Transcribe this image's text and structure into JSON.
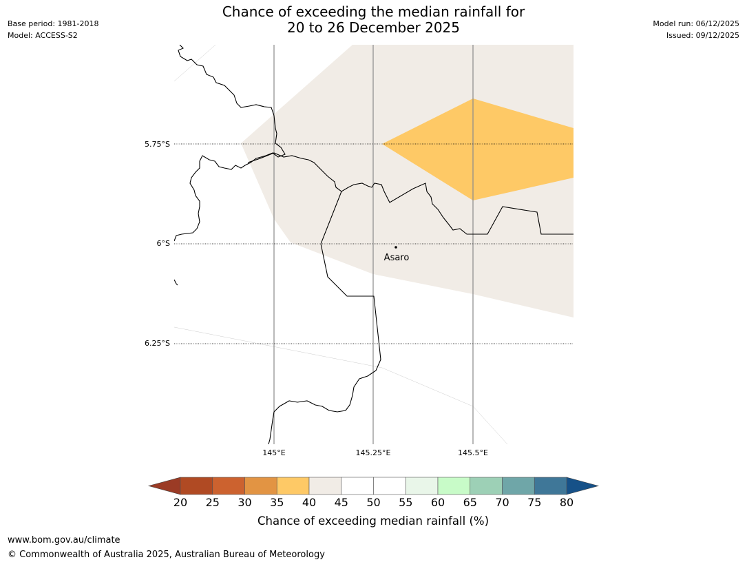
{
  "title": {
    "line1": "Chance of exceeding the median rainfall for",
    "line2": "20 to 26 December 2025"
  },
  "meta_left": {
    "base_period": "Base period: 1981-2018",
    "model": "Model: ACCESS-S2"
  },
  "meta_right": {
    "model_run": "Model run: 06/12/2025",
    "issued": "Issued: 09/12/2025"
  },
  "map": {
    "lat_labels": [
      "5.75°S",
      "6°S",
      "6.25°S"
    ],
    "lon_labels": [
      "145°E",
      "145.25°E",
      "145.5°E"
    ],
    "place": {
      "name": "Asaro"
    },
    "regions": [
      {
        "name": "40-45%",
        "color": "#f1ece6"
      },
      {
        "name": "35-40%",
        "color": "#fec966"
      }
    ]
  },
  "colorbar": {
    "ticks": [
      "20",
      "25",
      "30",
      "35",
      "40",
      "45",
      "50",
      "55",
      "60",
      "65",
      "70",
      "75",
      "80"
    ],
    "colors": [
      "#b04a23",
      "#cc622f",
      "#e29443",
      "#fec966",
      "#f1ece6",
      "#ffffff",
      "#ffffff",
      "#e9f6e9",
      "#c8fbc8",
      "#9dd0b6",
      "#6fa6a8",
      "#3f7798"
    ],
    "under_color": "#9b3b25",
    "over_color": "#165188",
    "label": "Chance of exceeding median rainfall (%)"
  },
  "footer": {
    "url": "www.bom.gov.au/climate",
    "copyright": "© Commonwealth of Australia 2025, Australian Bureau of Meteorology"
  }
}
